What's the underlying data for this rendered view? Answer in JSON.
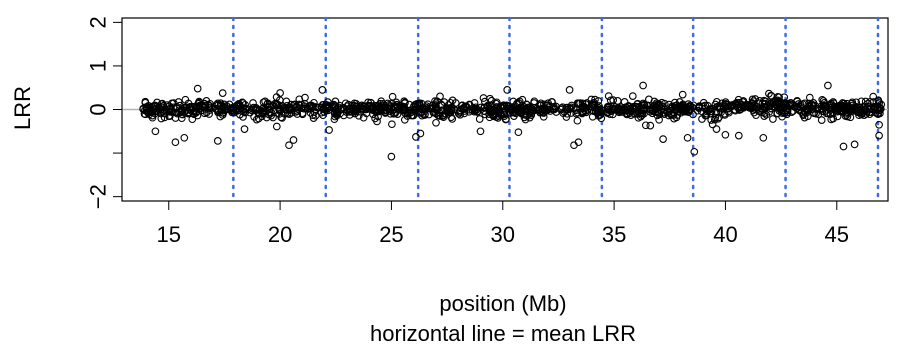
{
  "chart_data": {
    "type": "scatter",
    "title": "",
    "xlabel": "position (Mb)",
    "sublabel": "horizontal line = mean LRR",
    "ylabel": "LRR",
    "xlim": [
      12.9,
      47.3
    ],
    "ylim": [
      -2.1,
      2.1
    ],
    "x_ticks": [
      15,
      20,
      25,
      30,
      35,
      40,
      45
    ],
    "x_tick_labels": [
      "15",
      "20",
      "25",
      "30",
      "35",
      "40",
      "45"
    ],
    "y_ticks": [
      -2,
      -1,
      0,
      1,
      2
    ],
    "y_tick_labels": [
      "−2",
      "",
      "0",
      "1",
      "2"
    ],
    "mean_line": 0,
    "mean_line_color": "#b3b3b3",
    "marker_color": "#000000",
    "vline_color": "#4169e1",
    "vlines": [
      17.9,
      22.05,
      26.2,
      30.3,
      34.45,
      38.55,
      42.7,
      46.85
    ],
    "x_range": [
      13.8,
      47.0
    ],
    "point_count": 1400,
    "typical_spread": 0.09,
    "outliers": [
      {
        "x": 14.4,
        "y": -0.5
      },
      {
        "x": 15.3,
        "y": -0.75
      },
      {
        "x": 15.7,
        "y": -0.65
      },
      {
        "x": 16.3,
        "y": 0.48
      },
      {
        "x": 17.2,
        "y": -0.72
      },
      {
        "x": 20.4,
        "y": -0.82
      },
      {
        "x": 20.6,
        "y": -0.7
      },
      {
        "x": 21.9,
        "y": 0.45
      },
      {
        "x": 22.2,
        "y": -0.47
      },
      {
        "x": 25.0,
        "y": -1.08
      },
      {
        "x": 26.1,
        "y": -0.63
      },
      {
        "x": 26.3,
        "y": -0.55
      },
      {
        "x": 30.2,
        "y": 0.45
      },
      {
        "x": 30.7,
        "y": -0.52
      },
      {
        "x": 33.2,
        "y": -0.82
      },
      {
        "x": 33.4,
        "y": -0.75
      },
      {
        "x": 33.0,
        "y": 0.45
      },
      {
        "x": 37.2,
        "y": -0.68
      },
      {
        "x": 38.3,
        "y": -0.65
      },
      {
        "x": 38.6,
        "y": -0.97
      },
      {
        "x": 39.6,
        "y": -0.45
      },
      {
        "x": 40.0,
        "y": -0.58
      },
      {
        "x": 40.6,
        "y": -0.6
      },
      {
        "x": 41.7,
        "y": -0.65
      },
      {
        "x": 44.6,
        "y": 0.55
      },
      {
        "x": 45.3,
        "y": -0.85
      },
      {
        "x": 45.8,
        "y": -0.8
      },
      {
        "x": 46.9,
        "y": -0.6
      },
      {
        "x": 46.9,
        "y": -0.35
      },
      {
        "x": 36.3,
        "y": 0.55
      },
      {
        "x": 29.0,
        "y": -0.5
      },
      {
        "x": 18.4,
        "y": -0.45
      }
    ]
  }
}
